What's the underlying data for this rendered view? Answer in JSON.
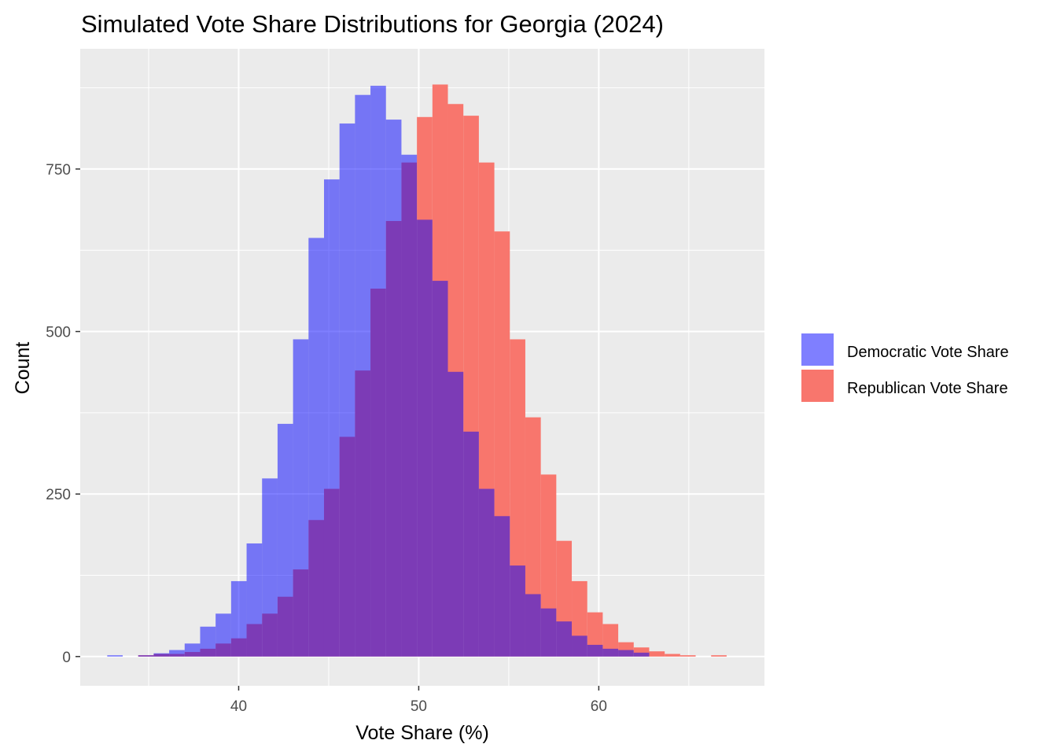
{
  "chart_data": {
    "type": "histogram",
    "title": "Simulated Vote Share Distributions for Georgia (2024)",
    "xlabel": "Vote Share (%)",
    "ylabel": "Count",
    "xlim": [
      31.2,
      69.2
    ],
    "ylim": [
      -45,
      935
    ],
    "x_ticks": [
      40,
      50,
      60
    ],
    "y_ticks": [
      0,
      250,
      500,
      750
    ],
    "bin_width": 0.86,
    "grid": true,
    "legend_position": "right",
    "series": [
      {
        "name": "Democratic Vote Share",
        "color": "#0000FF",
        "opacity": 0.5,
        "bins": [
          {
            "x0": 32.7,
            "x1": 33.56,
            "count": 2
          },
          {
            "x0": 34.42,
            "x1": 35.28,
            "count": 2
          },
          {
            "x0": 35.28,
            "x1": 36.14,
            "count": 5
          },
          {
            "x0": 36.14,
            "x1": 37.0,
            "count": 10
          },
          {
            "x0": 37.0,
            "x1": 37.86,
            "count": 20
          },
          {
            "x0": 37.86,
            "x1": 38.72,
            "count": 46
          },
          {
            "x0": 38.72,
            "x1": 39.58,
            "count": 66
          },
          {
            "x0": 39.58,
            "x1": 40.44,
            "count": 116
          },
          {
            "x0": 40.44,
            "x1": 41.3,
            "count": 174
          },
          {
            "x0": 41.3,
            "x1": 42.16,
            "count": 274
          },
          {
            "x0": 42.16,
            "x1": 43.02,
            "count": 358
          },
          {
            "x0": 43.02,
            "x1": 43.88,
            "count": 488
          },
          {
            "x0": 43.88,
            "x1": 44.74,
            "count": 644
          },
          {
            "x0": 44.74,
            "x1": 45.6,
            "count": 734
          },
          {
            "x0": 45.6,
            "x1": 46.46,
            "count": 820
          },
          {
            "x0": 46.46,
            "x1": 47.32,
            "count": 864
          },
          {
            "x0": 47.32,
            "x1": 48.18,
            "count": 878
          },
          {
            "x0": 48.18,
            "x1": 49.04,
            "count": 826
          },
          {
            "x0": 49.04,
            "x1": 49.9,
            "count": 772
          },
          {
            "x0": 49.9,
            "x1": 50.76,
            "count": 672
          },
          {
            "x0": 50.76,
            "x1": 51.62,
            "count": 578
          },
          {
            "x0": 51.62,
            "x1": 52.48,
            "count": 438
          },
          {
            "x0": 52.48,
            "x1": 53.34,
            "count": 346
          },
          {
            "x0": 53.34,
            "x1": 54.2,
            "count": 258
          },
          {
            "x0": 54.2,
            "x1": 55.06,
            "count": 216
          },
          {
            "x0": 55.06,
            "x1": 55.92,
            "count": 140
          },
          {
            "x0": 55.92,
            "x1": 56.78,
            "count": 96
          },
          {
            "x0": 56.78,
            "x1": 57.64,
            "count": 74
          },
          {
            "x0": 57.64,
            "x1": 58.5,
            "count": 54
          },
          {
            "x0": 58.5,
            "x1": 59.36,
            "count": 32
          },
          {
            "x0": 59.36,
            "x1": 60.22,
            "count": 18
          },
          {
            "x0": 60.22,
            "x1": 61.08,
            "count": 12
          },
          {
            "x0": 61.08,
            "x1": 61.94,
            "count": 10
          },
          {
            "x0": 61.94,
            "x1": 62.8,
            "count": 6
          }
        ]
      },
      {
        "name": "Republican Vote Share",
        "color": "#F8766D",
        "opacity": 1,
        "bins": [
          {
            "x0": 34.42,
            "x1": 35.28,
            "count": 2
          },
          {
            "x0": 35.28,
            "x1": 36.14,
            "count": 4
          },
          {
            "x0": 36.14,
            "x1": 37.0,
            "count": 4
          },
          {
            "x0": 37.0,
            "x1": 37.86,
            "count": 7
          },
          {
            "x0": 37.86,
            "x1": 38.72,
            "count": 12
          },
          {
            "x0": 38.72,
            "x1": 39.58,
            "count": 20
          },
          {
            "x0": 39.58,
            "x1": 40.44,
            "count": 28
          },
          {
            "x0": 40.44,
            "x1": 41.3,
            "count": 50
          },
          {
            "x0": 41.3,
            "x1": 42.16,
            "count": 66
          },
          {
            "x0": 42.16,
            "x1": 43.02,
            "count": 92
          },
          {
            "x0": 43.02,
            "x1": 43.88,
            "count": 134
          },
          {
            "x0": 43.88,
            "x1": 44.74,
            "count": 210
          },
          {
            "x0": 44.74,
            "x1": 45.6,
            "count": 258
          },
          {
            "x0": 45.6,
            "x1": 46.46,
            "count": 338
          },
          {
            "x0": 46.46,
            "x1": 47.32,
            "count": 440
          },
          {
            "x0": 47.32,
            "x1": 48.18,
            "count": 566
          },
          {
            "x0": 48.18,
            "x1": 49.04,
            "count": 670
          },
          {
            "x0": 49.04,
            "x1": 49.9,
            "count": 760
          },
          {
            "x0": 49.9,
            "x1": 50.76,
            "count": 830
          },
          {
            "x0": 50.76,
            "x1": 51.62,
            "count": 880
          },
          {
            "x0": 51.62,
            "x1": 52.48,
            "count": 850
          },
          {
            "x0": 52.48,
            "x1": 53.34,
            "count": 832
          },
          {
            "x0": 53.34,
            "x1": 54.2,
            "count": 760
          },
          {
            "x0": 54.2,
            "x1": 55.06,
            "count": 654
          },
          {
            "x0": 55.06,
            "x1": 55.92,
            "count": 488
          },
          {
            "x0": 55.92,
            "x1": 56.78,
            "count": 368
          },
          {
            "x0": 56.78,
            "x1": 57.64,
            "count": 280
          },
          {
            "x0": 57.64,
            "x1": 58.5,
            "count": 178
          },
          {
            "x0": 58.5,
            "x1": 59.36,
            "count": 116
          },
          {
            "x0": 59.36,
            "x1": 60.22,
            "count": 68
          },
          {
            "x0": 60.22,
            "x1": 61.08,
            "count": 50
          },
          {
            "x0": 61.08,
            "x1": 61.94,
            "count": 22
          },
          {
            "x0": 61.94,
            "x1": 62.8,
            "count": 14
          },
          {
            "x0": 62.8,
            "x1": 63.66,
            "count": 8
          },
          {
            "x0": 63.66,
            "x1": 64.52,
            "count": 4
          },
          {
            "x0": 64.52,
            "x1": 65.38,
            "count": 2
          },
          {
            "x0": 66.24,
            "x1": 67.1,
            "count": 2
          }
        ]
      }
    ],
    "overlap_color": "#BC2B68"
  }
}
